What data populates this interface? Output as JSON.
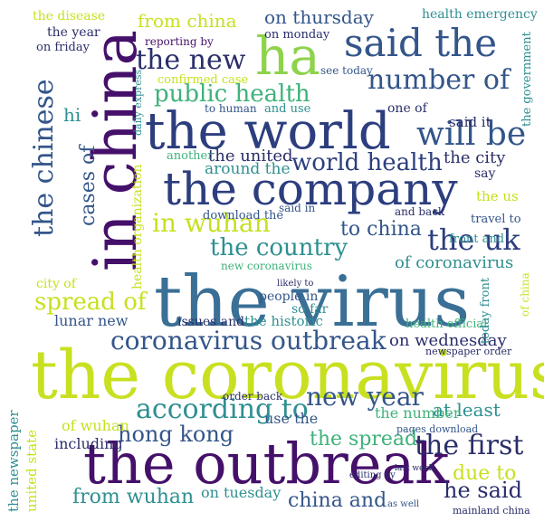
{
  "wordcloud": {
    "palette": {
      "darkblue": "#2c3e7e",
      "blue": "#33558a",
      "steel": "#3a6f96",
      "teal": "#2f8f91",
      "green": "#3fb27a",
      "lime": "#8ed34b",
      "yellow": "#c8e020",
      "purple": "#45106a",
      "navy": "#2a2e6a"
    },
    "words": [
      {
        "text": "the virus",
        "color": "steel"
      },
      {
        "text": "the coronavirus",
        "color": "yellow"
      },
      {
        "text": "the outbreak",
        "color": "purple"
      },
      {
        "text": "in china",
        "color": "purple"
      },
      {
        "text": "the world",
        "color": "blue"
      },
      {
        "text": "the company",
        "color": "blue"
      },
      {
        "text": "ha",
        "color": "lime"
      },
      {
        "text": "said the",
        "color": "blue"
      },
      {
        "text": "the new",
        "color": "navy"
      },
      {
        "text": "number of",
        "color": "blue"
      },
      {
        "text": "the chinese",
        "color": "blue"
      },
      {
        "text": "will be",
        "color": "blue"
      },
      {
        "text": "world health",
        "color": "blue"
      },
      {
        "text": "public health",
        "color": "green"
      },
      {
        "text": "in wuhan",
        "color": "yellow"
      },
      {
        "text": "the country",
        "color": "teal"
      },
      {
        "text": "the uk",
        "color": "blue"
      },
      {
        "text": "coronavirus outbreak",
        "color": "blue"
      },
      {
        "text": "spread of",
        "color": "yellow"
      },
      {
        "text": "according to",
        "color": "teal"
      },
      {
        "text": "new year",
        "color": "blue"
      },
      {
        "text": "hong kong",
        "color": "blue"
      },
      {
        "text": "the first",
        "color": "navy"
      },
      {
        "text": "the spread",
        "color": "green"
      },
      {
        "text": "from wuhan",
        "color": "teal"
      },
      {
        "text": "china and",
        "color": "blue"
      },
      {
        "text": "he said",
        "color": "navy"
      },
      {
        "text": "due to",
        "color": "yellow"
      },
      {
        "text": "at least",
        "color": "teal"
      },
      {
        "text": "to china",
        "color": "blue"
      },
      {
        "text": "of coronavirus",
        "color": "teal"
      },
      {
        "text": "on wednesday",
        "color": "navy"
      },
      {
        "text": "the city",
        "color": "navy"
      },
      {
        "text": "cases of",
        "color": "blue"
      },
      {
        "text": "from china",
        "color": "yellow"
      },
      {
        "text": "on thursday",
        "color": "blue"
      },
      {
        "text": "confirmed case",
        "color": "yellow"
      },
      {
        "text": "the united",
        "color": "navy"
      },
      {
        "text": "around the",
        "color": "teal"
      },
      {
        "text": "health organization",
        "color": "yellow"
      },
      {
        "text": "lunar new",
        "color": "blue"
      },
      {
        "text": "the historic",
        "color": "teal"
      },
      {
        "text": "issues and",
        "color": "navy"
      },
      {
        "text": "people in",
        "color": "blue"
      },
      {
        "text": "so far",
        "color": "teal"
      },
      {
        "text": "of wuhan",
        "color": "yellow"
      },
      {
        "text": "including",
        "color": "navy"
      },
      {
        "text": "use the",
        "color": "blue"
      },
      {
        "text": "the number",
        "color": "green"
      },
      {
        "text": "on tuesday",
        "color": "teal"
      },
      {
        "text": "the newspaper",
        "color": "teal"
      },
      {
        "text": "united state",
        "color": "yellow"
      },
      {
        "text": "health emergency",
        "color": "teal"
      },
      {
        "text": "the disease",
        "color": "yellow"
      },
      {
        "text": "the year",
        "color": "navy"
      },
      {
        "text": "on friday",
        "color": "navy"
      },
      {
        "text": "on monday",
        "color": "navy"
      },
      {
        "text": "reporting by",
        "color": "purple"
      },
      {
        "text": "said it",
        "color": "navy"
      },
      {
        "text": "one of",
        "color": "navy"
      },
      {
        "text": "the government",
        "color": "teal"
      },
      {
        "text": "the us",
        "color": "yellow"
      },
      {
        "text": "travel to",
        "color": "blue"
      },
      {
        "text": "front and",
        "color": "teal"
      },
      {
        "text": "city of",
        "color": "yellow"
      },
      {
        "text": "the chinese",
        "color": "teal"
      },
      {
        "text": "new coronavirus",
        "color": "green"
      },
      {
        "text": "health official",
        "color": "green"
      },
      {
        "text": "today front",
        "color": "teal"
      },
      {
        "text": "of china",
        "color": "yellow"
      },
      {
        "text": "and use",
        "color": "teal"
      },
      {
        "text": "to human",
        "color": "blue"
      },
      {
        "text": "download the",
        "color": "blue"
      },
      {
        "text": "another",
        "color": "green"
      },
      {
        "text": "daily express",
        "color": "teal"
      },
      {
        "text": "see today",
        "color": "blue"
      },
      {
        "text": "said in",
        "color": "blue"
      },
      {
        "text": "and back",
        "color": "navy"
      },
      {
        "text": "say",
        "color": "navy"
      },
      {
        "text": "hi",
        "color": "teal"
      },
      {
        "text": "order back",
        "color": "navy"
      },
      {
        "text": "pages download",
        "color": "blue"
      },
      {
        "text": "newspaper order",
        "color": "navy"
      },
      {
        "text": "mainland china",
        "color": "navy"
      },
      {
        "text": "as well",
        "color": "blue"
      },
      {
        "text": "editing by",
        "color": "navy"
      },
      {
        "text": "last week",
        "color": "navy"
      },
      {
        "text": "likely to",
        "color": "navy"
      }
    ]
  }
}
